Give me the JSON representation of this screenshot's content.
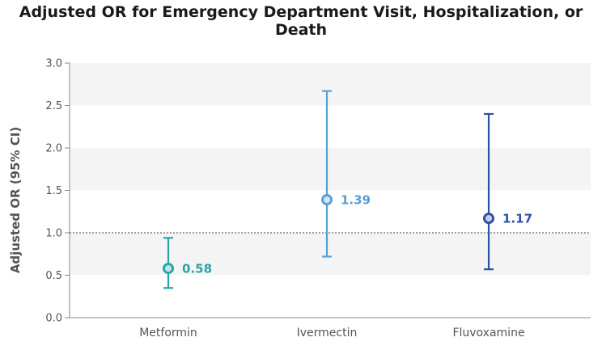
{
  "chart_data": {
    "type": "scatter",
    "title": "Adjusted OR for Emergency Department Visit, Hospitalization, or Death",
    "ylabel": "Adjusted OR (95% CI)",
    "xlabel": "",
    "ylim": [
      0,
      3.0
    ],
    "yticks": [
      "0.0",
      "0.5",
      "1.0",
      "1.5",
      "2.0",
      "2.5",
      "3.0"
    ],
    "reference_line": 1.0,
    "grid": "alternating horizontal bands",
    "categories": [
      "Metformin",
      "Ivermectin",
      "Fluvoxamine"
    ],
    "points": [
      {
        "category": "Metformin",
        "or": 0.58,
        "lower": 0.35,
        "upper": 0.94,
        "label": "0.58",
        "color": "#26a5a6"
      },
      {
        "category": "Ivermectin",
        "or": 1.39,
        "lower": 0.72,
        "upper": 2.67,
        "label": "1.39",
        "color": "#5a9fd4"
      },
      {
        "category": "Fluvoxamine",
        "or": 1.17,
        "lower": 0.57,
        "upper": 2.4,
        "label": "1.17",
        "color": "#2e4fa3"
      }
    ]
  }
}
